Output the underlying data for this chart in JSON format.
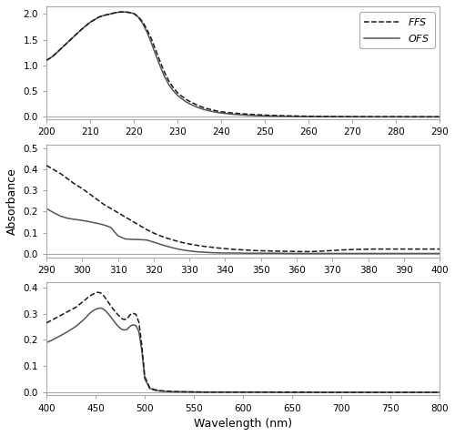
{
  "panel1": {
    "xrange": [
      200,
      290
    ],
    "yticks": [
      0.0,
      0.5,
      1.0,
      1.5,
      2.0
    ],
    "ylim": [
      -0.05,
      2.15
    ],
    "xticks": [
      200,
      210,
      220,
      230,
      240,
      250,
      260,
      270,
      280,
      290
    ],
    "ffs": {
      "x": [
        200,
        201,
        202,
        203,
        204,
        205,
        206,
        207,
        208,
        209,
        210,
        211,
        212,
        213,
        214,
        215,
        216,
        217,
        218,
        219,
        220,
        221,
        222,
        223,
        224,
        225,
        226,
        227,
        228,
        229,
        230,
        231,
        232,
        233,
        234,
        235,
        236,
        237,
        238,
        239,
        240,
        242,
        244,
        246,
        248,
        250,
        252,
        254,
        256,
        258,
        260,
        262,
        264,
        266,
        268,
        270,
        272,
        274,
        276,
        278,
        280,
        282,
        284,
        286,
        288,
        290
      ],
      "y": [
        1.1,
        1.15,
        1.22,
        1.3,
        1.38,
        1.46,
        1.54,
        1.62,
        1.7,
        1.77,
        1.84,
        1.89,
        1.94,
        1.97,
        1.99,
        2.01,
        2.03,
        2.04,
        2.04,
        2.03,
        2.01,
        1.95,
        1.85,
        1.7,
        1.52,
        1.3,
        1.08,
        0.87,
        0.7,
        0.57,
        0.47,
        0.4,
        0.34,
        0.29,
        0.25,
        0.21,
        0.18,
        0.155,
        0.135,
        0.115,
        0.1,
        0.08,
        0.065,
        0.053,
        0.043,
        0.035,
        0.028,
        0.023,
        0.019,
        0.015,
        0.012,
        0.009,
        0.007,
        0.006,
        0.005,
        0.004,
        0.003,
        0.003,
        0.002,
        0.002,
        0.002,
        0.001,
        0.001,
        0.001,
        0.001,
        0.001
      ]
    },
    "ofs": {
      "x": [
        200,
        201,
        202,
        203,
        204,
        205,
        206,
        207,
        208,
        209,
        210,
        211,
        212,
        213,
        214,
        215,
        216,
        217,
        218,
        219,
        220,
        221,
        222,
        223,
        224,
        225,
        226,
        227,
        228,
        229,
        230,
        231,
        232,
        233,
        234,
        235,
        236,
        237,
        238,
        239,
        240,
        242,
        244,
        246,
        248,
        250,
        252,
        254,
        256,
        258,
        260,
        262,
        264,
        266,
        268,
        270,
        272,
        274,
        276,
        278,
        280,
        282,
        284,
        286,
        288,
        290
      ],
      "y": [
        1.1,
        1.15,
        1.22,
        1.3,
        1.38,
        1.46,
        1.54,
        1.62,
        1.7,
        1.77,
        1.84,
        1.89,
        1.94,
        1.97,
        1.99,
        2.01,
        2.03,
        2.04,
        2.04,
        2.03,
        2.01,
        1.94,
        1.82,
        1.65,
        1.44,
        1.21,
        0.99,
        0.79,
        0.63,
        0.51,
        0.42,
        0.35,
        0.29,
        0.245,
        0.205,
        0.172,
        0.144,
        0.122,
        0.104,
        0.088,
        0.075,
        0.055,
        0.042,
        0.032,
        0.024,
        0.018,
        0.014,
        0.011,
        0.008,
        0.006,
        0.005,
        0.004,
        0.003,
        0.002,
        0.002,
        0.002,
        0.001,
        0.001,
        0.001,
        0.001,
        0.001,
        0.001,
        0.001,
        0.001,
        0.001,
        0.001
      ]
    }
  },
  "panel2": {
    "xrange": [
      290,
      400
    ],
    "yticks": [
      0.0,
      0.1,
      0.2,
      0.3,
      0.4,
      0.5
    ],
    "ylim": [
      -0.018,
      0.52
    ],
    "xticks": [
      290,
      300,
      310,
      320,
      330,
      340,
      350,
      360,
      370,
      380,
      390,
      400
    ],
    "ffs": {
      "x": [
        290,
        292,
        294,
        296,
        298,
        300,
        302,
        304,
        306,
        308,
        310,
        312,
        314,
        316,
        318,
        320,
        322,
        324,
        326,
        328,
        330,
        332,
        334,
        336,
        338,
        340,
        342,
        344,
        346,
        348,
        350,
        352,
        355,
        358,
        361,
        364,
        367,
        370,
        373,
        376,
        379,
        382,
        385,
        388,
        391,
        394,
        397,
        400
      ],
      "y": [
        0.42,
        0.4,
        0.38,
        0.355,
        0.33,
        0.31,
        0.285,
        0.26,
        0.235,
        0.215,
        0.195,
        0.175,
        0.155,
        0.135,
        0.115,
        0.098,
        0.084,
        0.072,
        0.062,
        0.053,
        0.046,
        0.04,
        0.035,
        0.031,
        0.027,
        0.024,
        0.021,
        0.019,
        0.017,
        0.015,
        0.014,
        0.013,
        0.012,
        0.011,
        0.01,
        0.01,
        0.012,
        0.015,
        0.018,
        0.02,
        0.021,
        0.022,
        0.022,
        0.022,
        0.022,
        0.022,
        0.022,
        0.022
      ]
    },
    "ofs": {
      "x": [
        290,
        292,
        294,
        296,
        298,
        300,
        302,
        304,
        306,
        308,
        310,
        312,
        314,
        316,
        318,
        320,
        322,
        324,
        326,
        328,
        330,
        332,
        334,
        336,
        338,
        340,
        342,
        344,
        346,
        348,
        350,
        352,
        355,
        358,
        361,
        364,
        367,
        370,
        373,
        376,
        379,
        382,
        385,
        388,
        391,
        394,
        397,
        400
      ],
      "y": [
        0.215,
        0.195,
        0.178,
        0.168,
        0.163,
        0.158,
        0.152,
        0.145,
        0.137,
        0.125,
        0.085,
        0.07,
        0.068,
        0.067,
        0.065,
        0.055,
        0.044,
        0.034,
        0.025,
        0.018,
        0.013,
        0.009,
        0.007,
        0.005,
        0.004,
        0.003,
        0.003,
        0.003,
        0.002,
        0.002,
        0.002,
        0.002,
        0.002,
        0.001,
        0.001,
        0.001,
        0.001,
        0.001,
        0.001,
        0.001,
        0.001,
        0.001,
        0.001,
        0.001,
        0.001,
        0.001,
        0.001,
        0.001
      ]
    }
  },
  "panel3": {
    "xrange": [
      400,
      800
    ],
    "yticks": [
      0.0,
      0.1,
      0.2,
      0.3,
      0.4
    ],
    "ylim": [
      -0.012,
      0.42
    ],
    "xticks": [
      400,
      450,
      500,
      550,
      600,
      650,
      700,
      750,
      800
    ],
    "ffs": {
      "x": [
        400,
        405,
        410,
        415,
        420,
        425,
        430,
        435,
        440,
        443,
        446,
        449,
        452,
        455,
        458,
        461,
        464,
        467,
        470,
        473,
        476,
        479,
        482,
        485,
        488,
        491,
        494,
        497,
        500,
        505,
        510,
        515,
        520,
        530,
        540,
        550,
        560,
        580,
        600,
        620,
        640,
        660,
        680,
        700,
        750,
        800
      ],
      "y": [
        0.265,
        0.275,
        0.285,
        0.295,
        0.305,
        0.315,
        0.325,
        0.34,
        0.355,
        0.365,
        0.372,
        0.378,
        0.382,
        0.38,
        0.37,
        0.355,
        0.338,
        0.322,
        0.308,
        0.295,
        0.283,
        0.278,
        0.28,
        0.296,
        0.302,
        0.298,
        0.268,
        0.18,
        0.06,
        0.018,
        0.01,
        0.007,
        0.005,
        0.003,
        0.002,
        0.002,
        0.001,
        0.001,
        0.001,
        0.001,
        0.001,
        0.001,
        0.0,
        0.0,
        0.0,
        0.0
      ]
    },
    "ofs": {
      "x": [
        400,
        405,
        410,
        415,
        420,
        425,
        430,
        435,
        440,
        443,
        446,
        449,
        452,
        455,
        458,
        461,
        464,
        467,
        470,
        473,
        476,
        479,
        482,
        485,
        488,
        491,
        494,
        497,
        500,
        505,
        510,
        515,
        520,
        530,
        540,
        550,
        560,
        580,
        600,
        620,
        640,
        660,
        680,
        700,
        750,
        800
      ],
      "y": [
        0.19,
        0.198,
        0.208,
        0.218,
        0.228,
        0.24,
        0.252,
        0.268,
        0.285,
        0.298,
        0.308,
        0.315,
        0.32,
        0.322,
        0.318,
        0.308,
        0.295,
        0.28,
        0.265,
        0.252,
        0.242,
        0.238,
        0.24,
        0.252,
        0.258,
        0.255,
        0.232,
        0.16,
        0.052,
        0.015,
        0.008,
        0.005,
        0.004,
        0.002,
        0.002,
        0.001,
        0.001,
        0.001,
        0.001,
        0.001,
        0.0,
        0.0,
        0.0,
        0.0,
        0.0,
        0.0
      ]
    }
  },
  "line_color": "#1a1a1a",
  "ofs_line_color": "#555555",
  "ffs_linestyle": "dashed",
  "ofs_linestyle": "solid",
  "ffs_linewidth": 1.1,
  "ofs_linewidth": 1.1,
  "ylabel": "Absorbance",
  "xlabel": "Wavelength (nm)",
  "background_color": "#ffffff",
  "spine_color": "#aaaaaa",
  "zeroline_color": "#aaaaaa"
}
